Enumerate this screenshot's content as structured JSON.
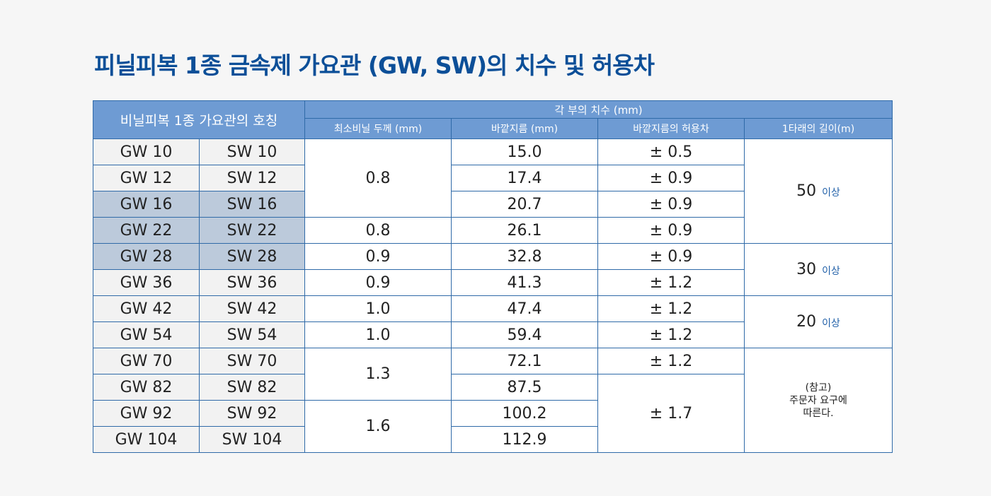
{
  "title": "피닐피복 1종 금속제 가요관 (GW, SW)의 치수 및 허용차",
  "header": {
    "name_col": "비닐피복 1종 가요관의 호칭",
    "group": "각 부의 치수 (mm)",
    "thickness": "최소비닐 두께 (mm)",
    "outer_diameter": "바깥지름 (mm)",
    "tolerance": "바깥지름의 허용차",
    "length": "1타래의 길이(m)"
  },
  "rows": [
    {
      "gw": "GW 10",
      "sw": "SW 10",
      "diameter": "15.0",
      "tolerance": "± 0.5"
    },
    {
      "gw": "GW 12",
      "sw": "SW 12",
      "diameter": "17.4",
      "tolerance": "± 0.9"
    },
    {
      "gw": "GW 16",
      "sw": "SW 16",
      "diameter": "20.7",
      "tolerance": "± 0.9"
    },
    {
      "gw": "GW 22",
      "sw": "SW 22",
      "diameter": "26.1",
      "tolerance": "± 0.9"
    },
    {
      "gw": "GW 28",
      "sw": "SW 28",
      "diameter": "32.8",
      "tolerance": "± 0.9"
    },
    {
      "gw": "GW 36",
      "sw": "SW 36",
      "diameter": "41.3",
      "tolerance": "± 1.2"
    },
    {
      "gw": "GW 42",
      "sw": "SW 42",
      "diameter": "47.4",
      "tolerance": "± 1.2"
    },
    {
      "gw": "GW 54",
      "sw": "SW 54",
      "diameter": "59.4",
      "tolerance": "± 1.2"
    },
    {
      "gw": "GW 70",
      "sw": "SW 70",
      "diameter": "72.1",
      "tolerance": "± 1.2"
    },
    {
      "gw": "GW 82",
      "sw": "SW 82",
      "diameter": "87.5",
      "tolerance": "± 1.7"
    },
    {
      "gw": "GW 92",
      "sw": "SW 92",
      "diameter": "100.2"
    },
    {
      "gw": "GW 104",
      "sw": "SW 104",
      "diameter": "112.9"
    }
  ],
  "thickness_groups": [
    "0.8",
    "0.8",
    "0.9",
    "0.9",
    "1.0",
    "1.0",
    "1.3",
    "1.6"
  ],
  "length_groups": [
    {
      "value": "50",
      "suffix": "이상"
    },
    {
      "value": "30",
      "suffix": "이상"
    },
    {
      "value": "20",
      "suffix": "이상"
    }
  ],
  "length_note": [
    "(참고)",
    "주문자 요구에",
    "따른다."
  ],
  "colors": {
    "title": "#0c4f98",
    "header_bg": "#6e9bd3",
    "border": "#2f6aa8",
    "highlight_name_bg": "#bccadb",
    "name_bg": "#f2f2f2"
  }
}
